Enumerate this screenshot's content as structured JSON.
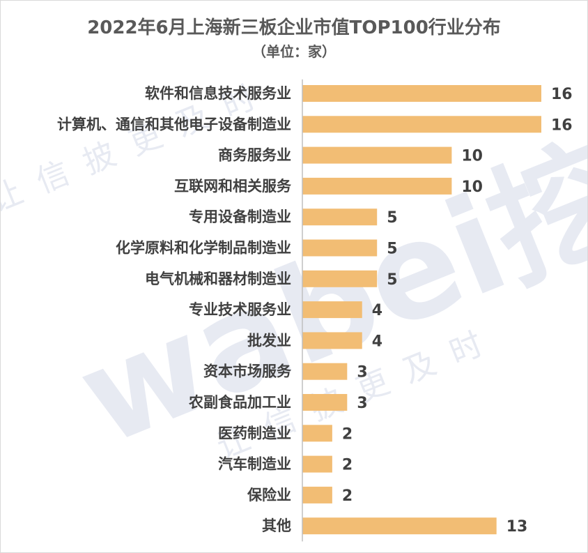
{
  "chart_data": {
    "type": "bar",
    "orientation": "horizontal",
    "title": "2022年6月上海新三板企业市值TOP100行业分布",
    "subtitle": "（单位：家）",
    "xlabel": "",
    "ylabel": "",
    "xlim": [
      0,
      16
    ],
    "grid": false,
    "legend": "none",
    "bar_color": "#F2BD74",
    "categories": [
      "软件和信息技术服务业",
      "计算机、通信和其他电子设备制造业",
      "商务服务业",
      "互联网和相关服务",
      "专用设备制造业",
      "化学原料和化学制品制造业",
      "电气机械和器材制造业",
      "专业技术服务业",
      "批发业",
      "资本市场服务",
      "农副食品加工业",
      "医药制造业",
      "汽车制造业",
      "保险业",
      "其他"
    ],
    "values": [
      16,
      16,
      10,
      10,
      5,
      5,
      5,
      4,
      4,
      3,
      3,
      2,
      2,
      2,
      13
    ]
  },
  "watermark": {
    "logo_text": "wabei挖贝",
    "slogan": "让信披更及时"
  }
}
